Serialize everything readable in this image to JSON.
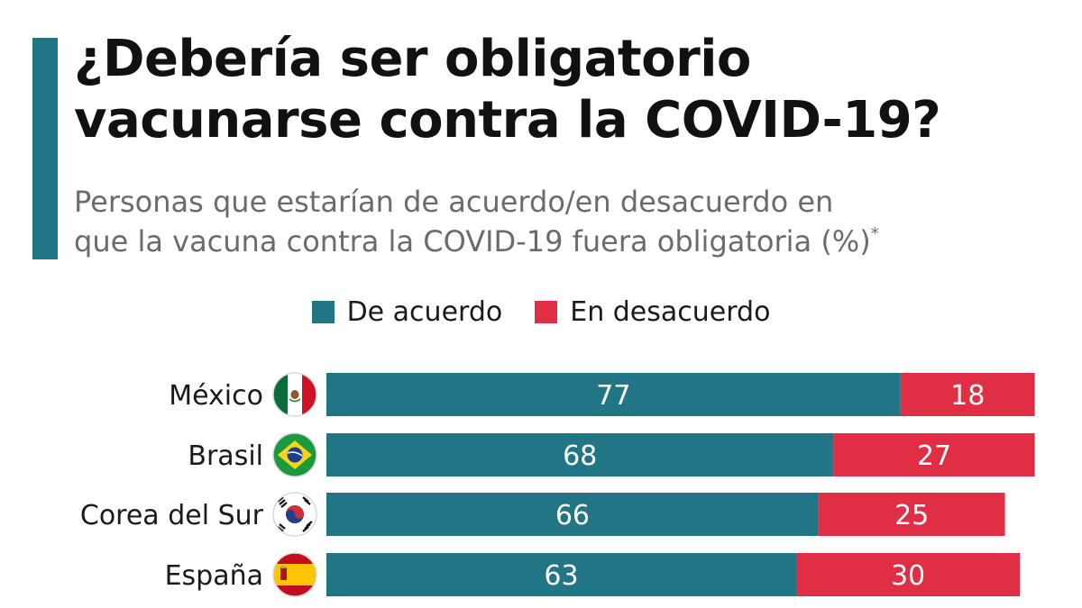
{
  "title_lines": [
    "¿Debería ser obligatorio",
    "vacunarse contra la COVID-19?"
  ],
  "subtitle_lines": [
    "Personas que estarían de acuerdo/en desacuerdo en",
    "que la vacuna contra la COVID-19 fuera obligatoria (%)"
  ],
  "subtitle_footnote_mark": "*",
  "colors": {
    "accent": "#217584",
    "agree": "#217584",
    "disagree": "#e02f45"
  },
  "chart_data": {
    "type": "bar",
    "orientation": "horizontal",
    "stacked": true,
    "title": "¿Debería ser obligatorio vacunarse contra la COVID-19?",
    "subtitle": "Personas que estarían de acuerdo/en desacuerdo en que la vacuna contra la COVID-19 fuera obligatoria (%)",
    "categories": [
      "México",
      "Brasil",
      "Corea del Sur",
      "España"
    ],
    "category_icons": [
      "mexico-flag-icon",
      "brazil-flag-icon",
      "south-korea-flag-icon",
      "spain-flag-icon"
    ],
    "series": [
      {
        "name": "De acuerdo",
        "values": [
          77,
          68,
          66,
          63
        ],
        "color": "#217584"
      },
      {
        "name": "En desacuerdo",
        "values": [
          18,
          27,
          25,
          30
        ],
        "color": "#e02f45"
      }
    ],
    "xlim": [
      0,
      95
    ],
    "legend_position": "top-center",
    "grid": false
  }
}
